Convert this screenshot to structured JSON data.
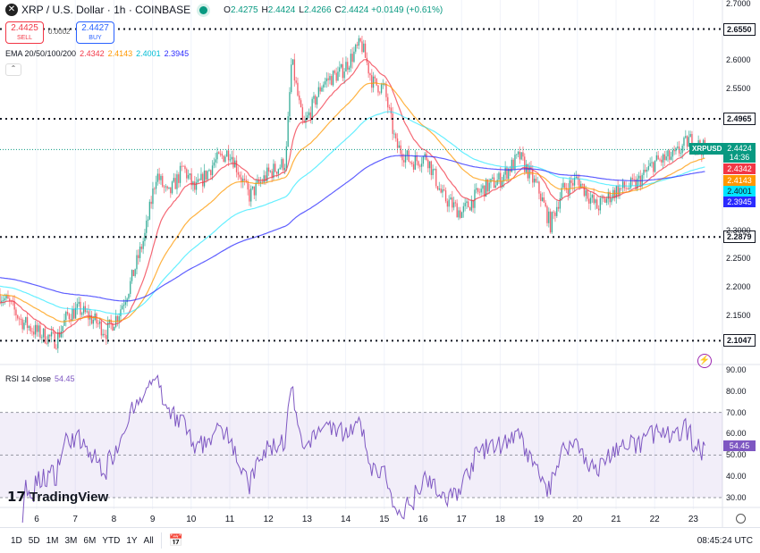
{
  "header": {
    "symbol": "XRP / U.S. Dollar · 1h · COINBASE",
    "open": "2.4275",
    "high": "2.4424",
    "low": "2.4266",
    "close": "2.4424",
    "change": "+0.0149 (+0.61%)",
    "o_label": "O",
    "h_label": "H",
    "l_label": "L",
    "c_label": "C"
  },
  "trade": {
    "sell_price": "2.4425",
    "sell_label": "SELL",
    "buy_price": "2.4427",
    "buy_label": "BUY",
    "spread": "0.0002"
  },
  "ema": {
    "label": "EMA 20/50/100/200",
    "values": [
      "2.4342",
      "2.4143",
      "2.4001",
      "2.3945"
    ],
    "colors": [
      "#f23645",
      "#ff9800",
      "#00e5ff",
      "#2a2aff"
    ]
  },
  "rsi": {
    "label": "RSI 14 close",
    "value": "54.45",
    "color": "#7e57c2",
    "scale": [
      "90.00",
      "80.00",
      "70.00",
      "60.00",
      "50.00",
      "40.00",
      "30.00"
    ],
    "levels": [
      30,
      50,
      70
    ]
  },
  "price_scale": {
    "ticks": [
      "2.7000",
      "2.6000",
      "2.5500",
      "2.3000",
      "2.2500",
      "2.2000",
      "2.1500"
    ],
    "tick_values": [
      2.7,
      2.6,
      2.55,
      2.3,
      2.25,
      2.2,
      2.15
    ],
    "levels": [
      "2.6550",
      "2.4965",
      "2.2879",
      "2.1047"
    ],
    "level_values": [
      2.655,
      2.4965,
      2.2879,
      2.1047
    ],
    "last_price": "2.4424",
    "countdown": "14:36",
    "symbol_tag": "XRPUSD"
  },
  "x_axis": [
    "6",
    "7",
    "8",
    "9",
    "10",
    "11",
    "12",
    "13",
    "14",
    "15",
    "16",
    "17",
    "18",
    "19",
    "20",
    "21",
    "22",
    "23"
  ],
  "price_path": [
    [
      5.0,
      2.19
    ],
    [
      5.3,
      2.17
    ],
    [
      5.6,
      2.14
    ],
    [
      6.0,
      2.12
    ],
    [
      6.5,
      2.105
    ],
    [
      6.8,
      2.15
    ],
    [
      7.1,
      2.16
    ],
    [
      7.5,
      2.14
    ],
    [
      7.8,
      2.12
    ],
    [
      8.1,
      2.15
    ],
    [
      8.4,
      2.2
    ],
    [
      8.8,
      2.29
    ],
    [
      9.1,
      2.4
    ],
    [
      9.4,
      2.36
    ],
    [
      9.8,
      2.41
    ],
    [
      10.1,
      2.37
    ],
    [
      10.6,
      2.42
    ],
    [
      11.0,
      2.44
    ],
    [
      11.5,
      2.36
    ],
    [
      12.0,
      2.4
    ],
    [
      12.45,
      2.42
    ],
    [
      12.6,
      2.6
    ],
    [
      12.9,
      2.48
    ],
    [
      13.4,
      2.56
    ],
    [
      13.9,
      2.58
    ],
    [
      14.4,
      2.63
    ],
    [
      14.7,
      2.56
    ],
    [
      15.0,
      2.55
    ],
    [
      15.3,
      2.45
    ],
    [
      15.7,
      2.42
    ],
    [
      16.1,
      2.43
    ],
    [
      16.5,
      2.36
    ],
    [
      17.0,
      2.33
    ],
    [
      17.5,
      2.37
    ],
    [
      18.0,
      2.39
    ],
    [
      18.5,
      2.43
    ],
    [
      19.0,
      2.37
    ],
    [
      19.3,
      2.31
    ],
    [
      19.6,
      2.37
    ],
    [
      20.0,
      2.39
    ],
    [
      20.5,
      2.34
    ],
    [
      21.0,
      2.37
    ],
    [
      21.5,
      2.38
    ],
    [
      22.0,
      2.42
    ],
    [
      22.5,
      2.43
    ],
    [
      22.9,
      2.46
    ],
    [
      23.3,
      2.4424
    ]
  ],
  "footer": {
    "ranges": [
      "1D",
      "5D",
      "1M",
      "3M",
      "6M",
      "YTD",
      "1Y",
      "All"
    ],
    "time": "08:45:24 UTC",
    "brand": "TradingView"
  }
}
